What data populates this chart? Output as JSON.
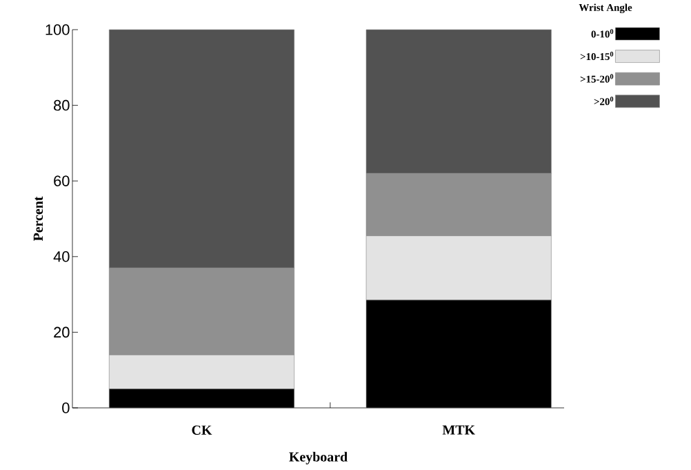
{
  "chart_data": {
    "type": "bar",
    "stacked": true,
    "xlabel": "Keyboard",
    "ylabel": "Percent",
    "legend_title": "Wrist Angle",
    "legend": "top right",
    "categories": [
      "CK",
      "MTK"
    ],
    "series": [
      {
        "name": "0-10$^{0}$",
        "color": "#000000",
        "values": [
          5,
          28.5
        ]
      },
      {
        "name": ">10-15$^{0}$",
        "color": "#e3e3e3",
        "values": [
          9,
          17
        ]
      },
      {
        "name": ">15-20$^{0}$",
        "color": "#909090",
        "values": [
          23,
          16.5
        ]
      },
      {
        "name": ">20$^{0}$",
        "color": "#525252",
        "values": [
          63,
          38
        ]
      }
    ],
    "ylim": [
      0,
      100
    ],
    "yticks": [
      0,
      20,
      40,
      60,
      80,
      100
    ],
    "grid": false
  }
}
